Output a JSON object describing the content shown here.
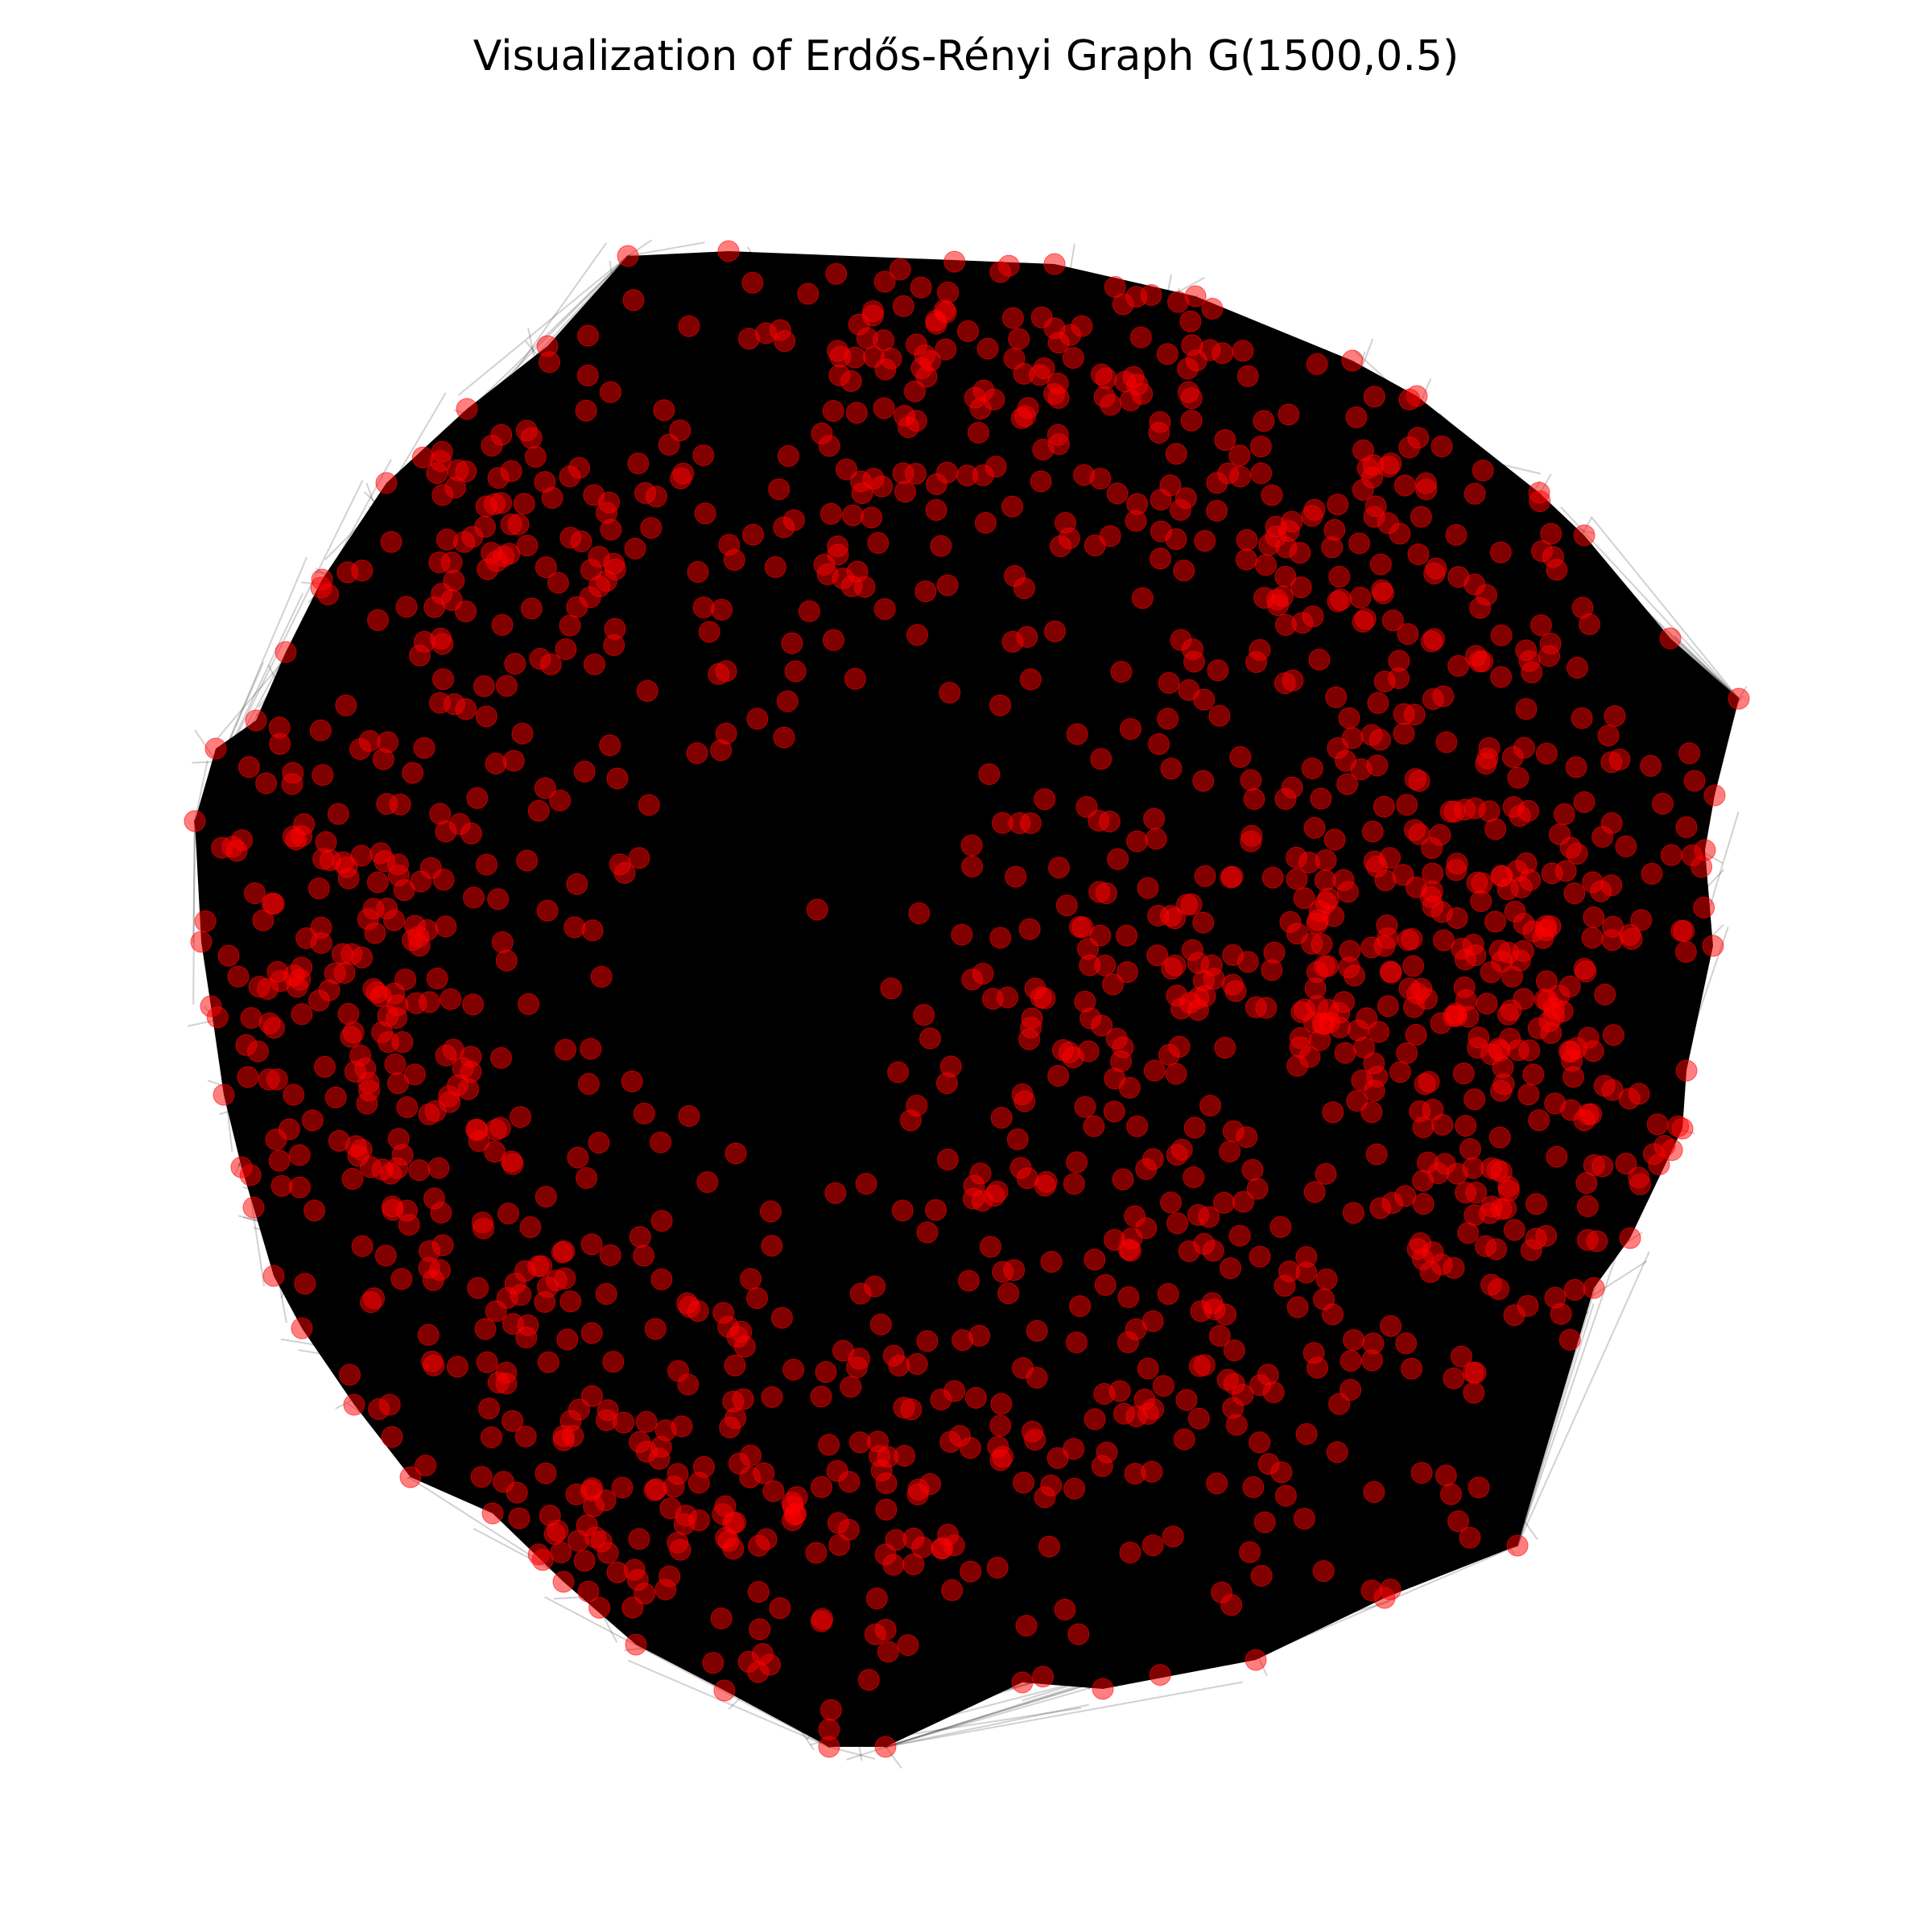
{
  "title": "Visualization of Erdős-Rényi Graph G(1500,0.5)",
  "graph": {
    "model": "Erdős-Rényi",
    "n": 1500,
    "p": 0.5,
    "node_color": "#ff0000",
    "edge_color": "#000000",
    "background": "#ffffff",
    "axes": "off"
  }
}
